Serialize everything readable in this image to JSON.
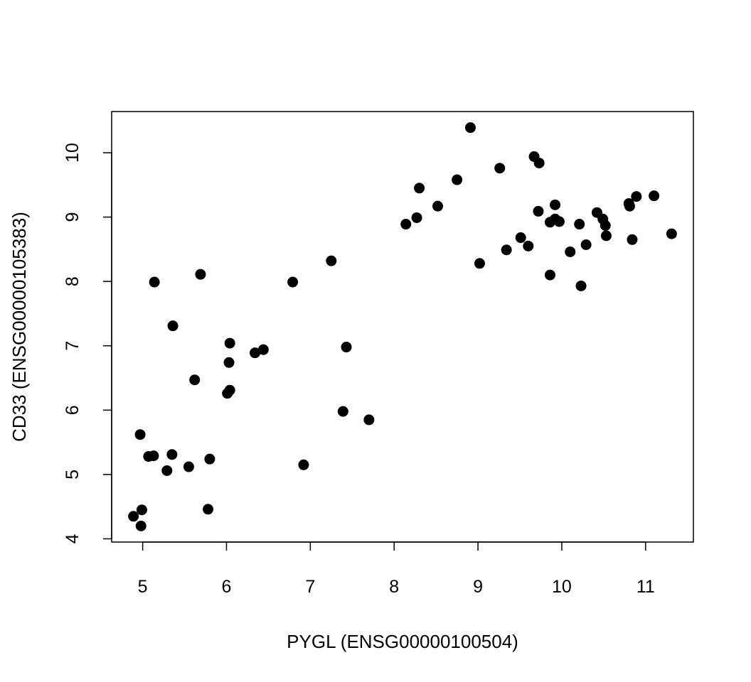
{
  "chart_data": {
    "type": "scatter",
    "title": "",
    "xlabel": "PYGL (ENSG00000100504)",
    "ylabel": "CD33 (ENSG00000105383)",
    "xlim": [
      4.63,
      11.57
    ],
    "ylim": [
      3.95,
      10.64
    ],
    "xticks": [
      5,
      6,
      7,
      8,
      9,
      10,
      11
    ],
    "yticks": [
      4,
      5,
      6,
      7,
      8,
      9,
      10
    ],
    "grid": false,
    "marker_color": "#000000",
    "points": [
      [
        4.89,
        4.35
      ],
      [
        4.99,
        4.45
      ],
      [
        4.98,
        4.2
      ],
      [
        4.97,
        5.62
      ],
      [
        5.07,
        5.28
      ],
      [
        5.13,
        5.29
      ],
      [
        5.14,
        7.99
      ],
      [
        5.29,
        5.06
      ],
      [
        5.35,
        5.31
      ],
      [
        5.36,
        7.31
      ],
      [
        5.55,
        5.12
      ],
      [
        5.62,
        6.47
      ],
      [
        5.69,
        8.11
      ],
      [
        5.78,
        4.46
      ],
      [
        5.8,
        5.24
      ],
      [
        6.01,
        6.26
      ],
      [
        6.04,
        6.31
      ],
      [
        6.03,
        6.74
      ],
      [
        6.04,
        7.04
      ],
      [
        6.34,
        6.89
      ],
      [
        6.44,
        6.94
      ],
      [
        6.79,
        7.99
      ],
      [
        6.92,
        5.15
      ],
      [
        7.25,
        8.32
      ],
      [
        7.39,
        5.98
      ],
      [
        7.43,
        6.98
      ],
      [
        7.7,
        5.85
      ],
      [
        8.14,
        8.89
      ],
      [
        8.27,
        8.99
      ],
      [
        8.3,
        9.45
      ],
      [
        8.52,
        9.17
      ],
      [
        8.75,
        9.58
      ],
      [
        8.91,
        10.39
      ],
      [
        9.02,
        8.28
      ],
      [
        9.26,
        9.76
      ],
      [
        9.34,
        8.49
      ],
      [
        9.51,
        8.68
      ],
      [
        9.6,
        8.55
      ],
      [
        9.67,
        9.94
      ],
      [
        9.73,
        9.84
      ],
      [
        9.72,
        9.09
      ],
      [
        9.86,
        8.1
      ],
      [
        9.86,
        8.92
      ],
      [
        9.92,
        9.19
      ],
      [
        9.92,
        8.97
      ],
      [
        9.97,
        8.93
      ],
      [
        10.1,
        8.46
      ],
      [
        10.21,
        8.89
      ],
      [
        10.23,
        7.93
      ],
      [
        10.29,
        8.57
      ],
      [
        10.42,
        9.07
      ],
      [
        10.49,
        8.97
      ],
      [
        10.52,
        8.87
      ],
      [
        10.53,
        8.71
      ],
      [
        10.8,
        9.21
      ],
      [
        10.81,
        9.17
      ],
      [
        10.84,
        8.65
      ],
      [
        10.89,
        9.32
      ],
      [
        11.1,
        9.33
      ],
      [
        11.31,
        8.74
      ]
    ]
  }
}
